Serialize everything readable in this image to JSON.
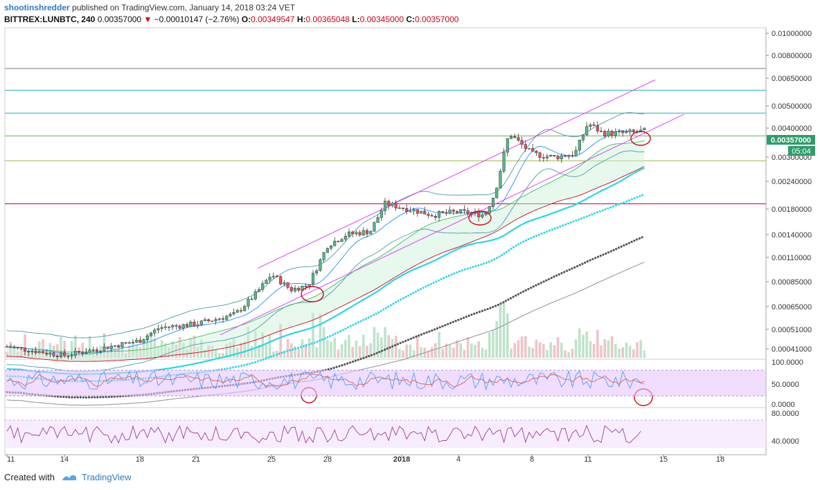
{
  "header": {
    "author": "shootinshredder",
    "published_text": "published on TradingView.com, January 14, 2018 03:24 VET",
    "symbol": "BITTREX:LUNBTC, 240",
    "last": "0.00357000",
    "change": "−0.00010147 (−2.76%)",
    "o_label": "O:",
    "o_value": "0.00349547",
    "h_label": "H:",
    "h_value": "0.00365048",
    "l_label": "L:",
    "l_value": "0.00345000",
    "c_label": "C:",
    "c_value": "0.00357000"
  },
  "footer": {
    "created_with": "Created with",
    "brand": "TradingView"
  },
  "colors": {
    "up": "#53b987",
    "down": "#eb4d5c",
    "channel": "#e040fb",
    "ema_fast": "#26d7e6",
    "ema_slow": "#555555",
    "sma": "#999999",
    "bollinger": "#4a9aa8",
    "rsi_fill": "#e6c7ff"
  },
  "chart_data": {
    "type": "candlestick",
    "x_ticks": [
      "11",
      "14",
      "18",
      "21",
      "25",
      "28",
      "2018",
      "4",
      "8",
      "11",
      "15",
      "18"
    ],
    "y_ticks": [
      "0.01000000",
      "0.00800000",
      "0.00650000",
      "0.00500000",
      "0.00400000",
      "0.00300000",
      "0.00240000",
      "0.00180000",
      "0.00140000",
      "0.00110000",
      "0.00085000",
      "0.00065000",
      "0.00051000",
      "0.00041000"
    ],
    "y_scale": "log",
    "price_label": "0.00357000",
    "countdown_label": "05:04",
    "horizontal_levels": [
      0.0071,
      0.0058,
      0.00465,
      0.0037,
      0.0029,
      0.0019
    ],
    "price_path": [
      [
        "11",
        0.00042
      ],
      [
        "14",
        0.00038
      ],
      [
        "18",
        0.00045
      ],
      [
        "19",
        0.00052
      ],
      [
        "21",
        0.00054
      ],
      [
        "23",
        0.0006
      ],
      [
        "24",
        0.00075
      ],
      [
        "25",
        0.00092
      ],
      [
        "26",
        0.00078
      ],
      [
        "27",
        0.00082
      ],
      [
        "28",
        0.00125
      ],
      [
        "29",
        0.0014
      ],
      [
        "31",
        0.00145
      ],
      [
        "2018",
        0.0019
      ],
      [
        "2",
        0.0018
      ],
      [
        "3",
        0.0017
      ],
      [
        "4",
        0.00175
      ],
      [
        "5",
        0.0017
      ],
      [
        "6",
        0.0021
      ],
      [
        "6b",
        0.0038
      ],
      [
        "7",
        0.0031
      ],
      [
        "8",
        0.003
      ],
      [
        "9",
        0.0031
      ],
      [
        "10",
        0.0042
      ],
      [
        "11",
        0.0038
      ],
      [
        "12",
        0.0038
      ],
      [
        "13",
        0.0039
      ],
      [
        "14",
        0.00357
      ]
    ],
    "panels": [
      {
        "name": "RSI",
        "y_ticks": [
          "100.0000",
          "50.0000",
          "0.0000"
        ]
      },
      {
        "name": "oscillator",
        "y_ticks": [
          "80.0000",
          "40.0000"
        ]
      }
    ]
  }
}
